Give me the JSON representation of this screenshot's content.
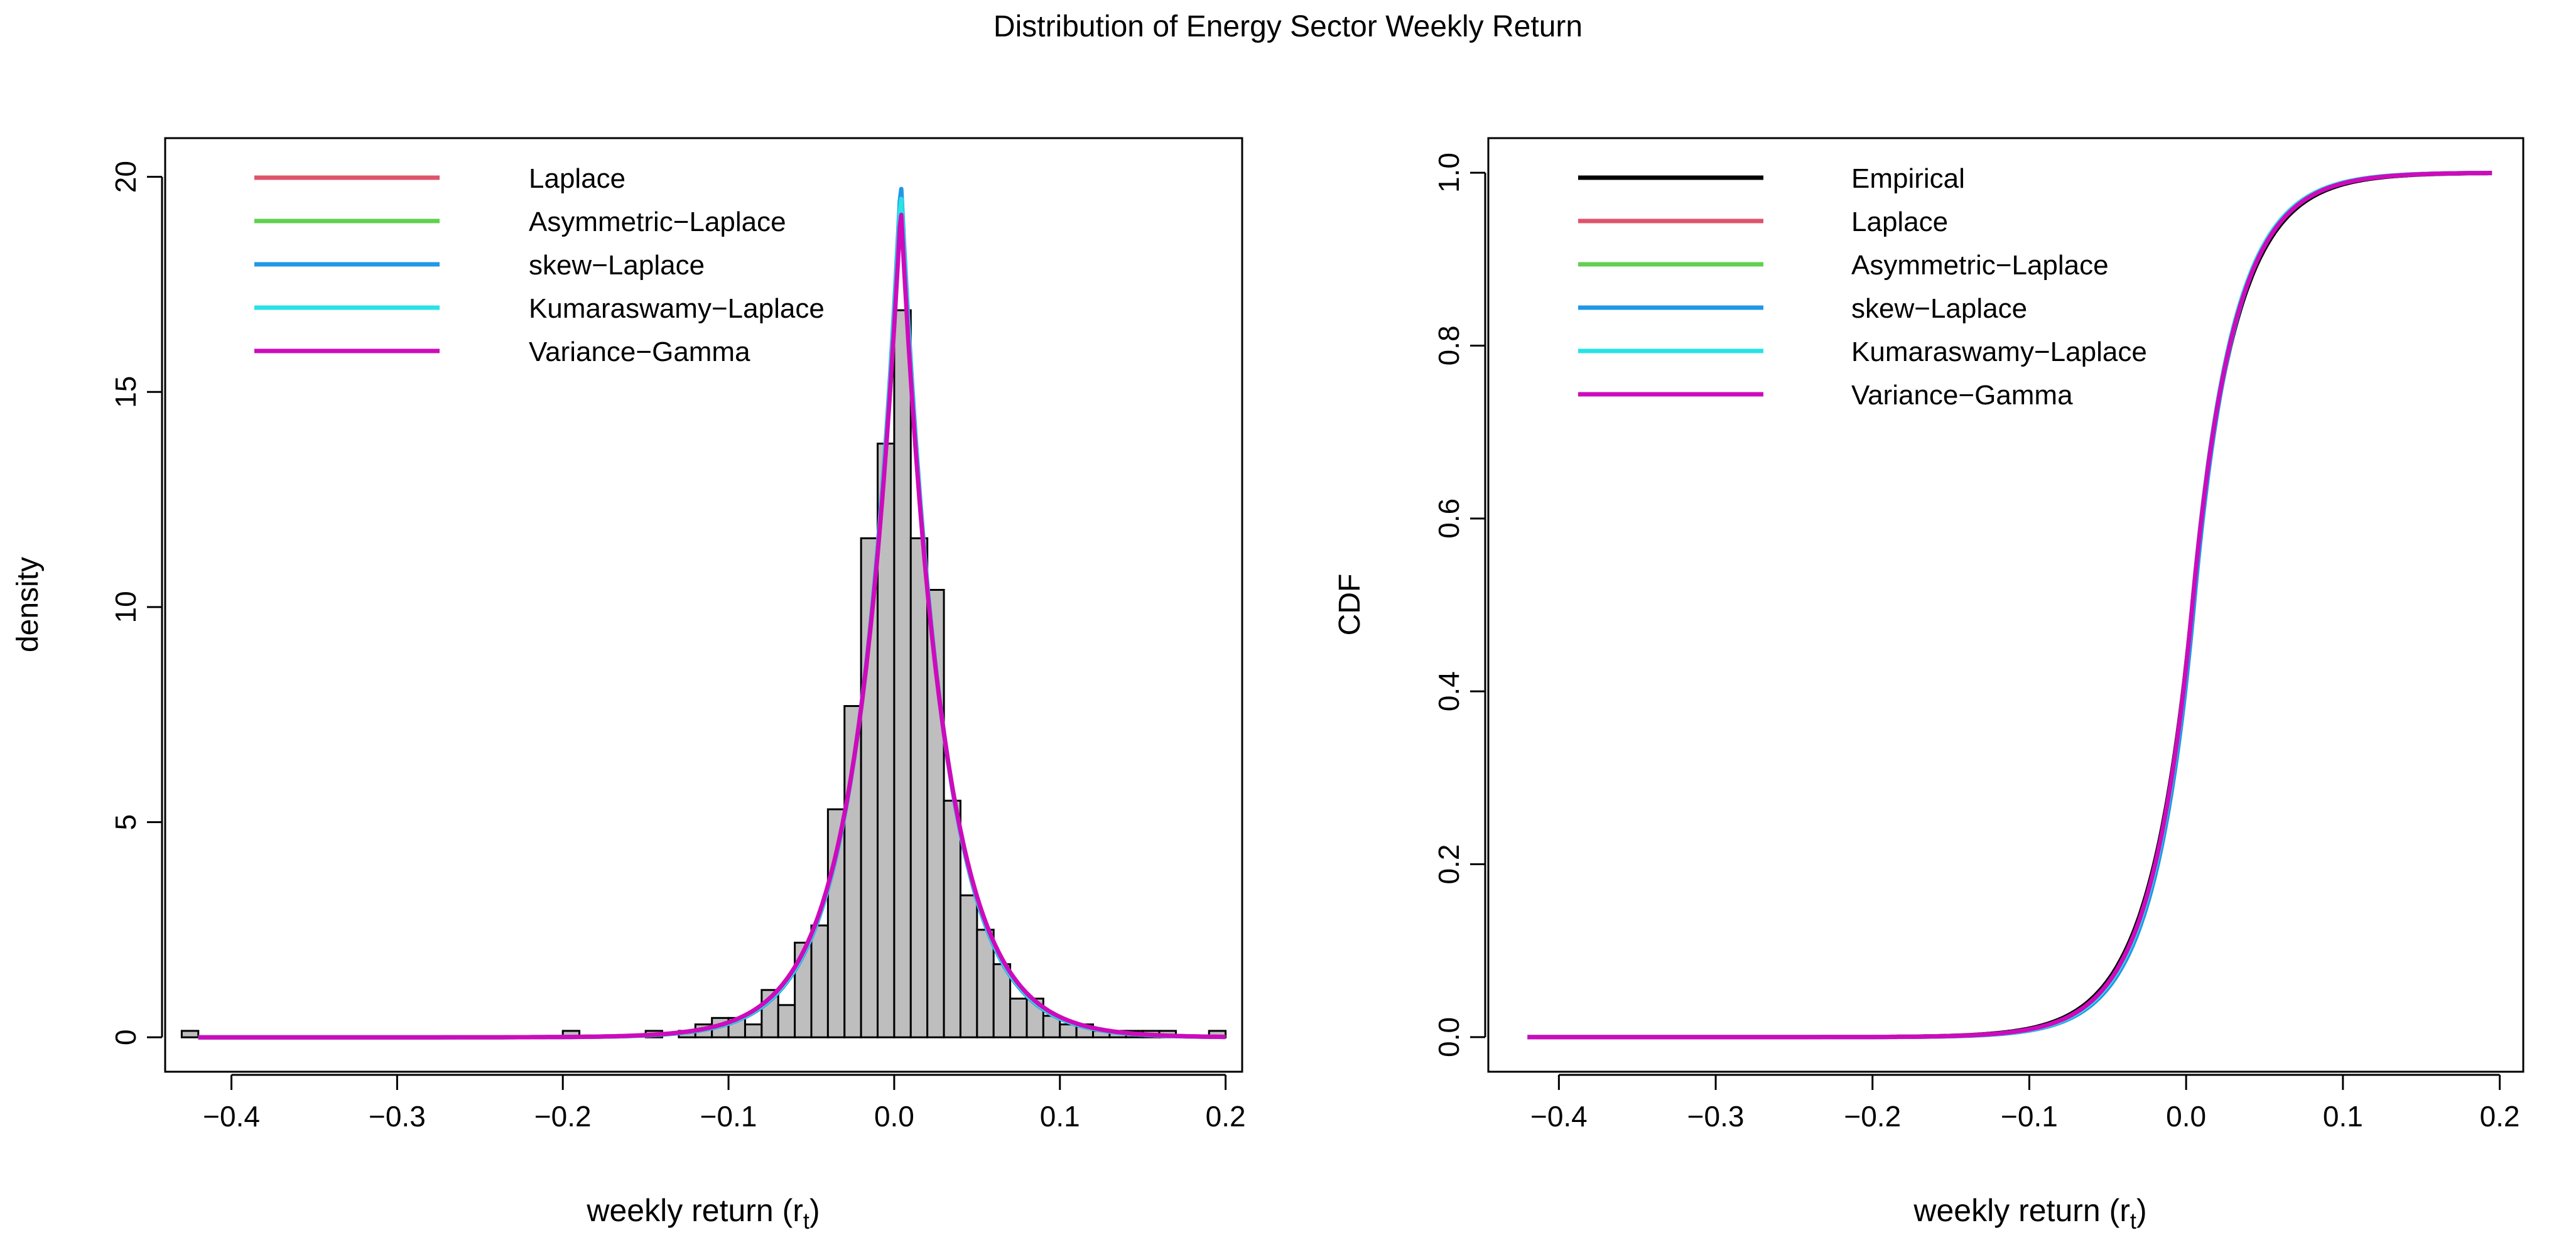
{
  "figure": {
    "title": "Distribution of Energy Sector Weekly Return"
  },
  "chart_data": [
    {
      "type": "histogram",
      "xlabel": "weekly return (r",
      "xlabel_sub": "t",
      "xlabel_end": ")",
      "ylabel": "density",
      "xlim": [
        -0.44,
        0.21
      ],
      "ylim": [
        -0.8,
        20.9
      ],
      "xticks": [
        -0.4,
        -0.3,
        -0.2,
        -0.1,
        0.0,
        0.1,
        0.2
      ],
      "xtick_labels": [
        "−0.4",
        "−0.3",
        "−0.2",
        "−0.1",
        "0.0",
        "0.1",
        "0.2"
      ],
      "yticks": [
        0,
        5,
        10,
        15,
        20
      ],
      "ytick_labels": [
        "0",
        "5",
        "10",
        "15",
        "20"
      ],
      "grid": false,
      "legend_position": "top-left",
      "bin_width": 0.01,
      "bins": [
        {
          "x0": -0.43,
          "density": 0.15
        },
        {
          "x0": -0.2,
          "density": 0.15
        },
        {
          "x0": -0.15,
          "density": 0.15
        },
        {
          "x0": -0.13,
          "density": 0.15
        },
        {
          "x0": -0.12,
          "density": 0.3
        },
        {
          "x0": -0.11,
          "density": 0.45
        },
        {
          "x0": -0.1,
          "density": 0.45
        },
        {
          "x0": -0.09,
          "density": 0.3
        },
        {
          "x0": -0.08,
          "density": 1.1
        },
        {
          "x0": -0.07,
          "density": 0.75
        },
        {
          "x0": -0.06,
          "density": 2.2
        },
        {
          "x0": -0.05,
          "density": 2.6
        },
        {
          "x0": -0.04,
          "density": 5.3
        },
        {
          "x0": -0.03,
          "density": 7.7
        },
        {
          "x0": -0.02,
          "density": 11.6
        },
        {
          "x0": -0.01,
          "density": 13.8
        },
        {
          "x0": 0.0,
          "density": 16.9
        },
        {
          "x0": 0.01,
          "density": 11.6
        },
        {
          "x0": 0.02,
          "density": 10.4
        },
        {
          "x0": 0.03,
          "density": 5.5
        },
        {
          "x0": 0.04,
          "density": 3.3
        },
        {
          "x0": 0.05,
          "density": 2.5
        },
        {
          "x0": 0.06,
          "density": 1.7
        },
        {
          "x0": 0.07,
          "density": 0.9
        },
        {
          "x0": 0.08,
          "density": 0.9
        },
        {
          "x0": 0.09,
          "density": 0.5
        },
        {
          "x0": 0.1,
          "density": 0.3
        },
        {
          "x0": 0.11,
          "density": 0.3
        },
        {
          "x0": 0.12,
          "density": 0.15
        },
        {
          "x0": 0.13,
          "density": 0.15
        },
        {
          "x0": 0.14,
          "density": 0.15
        },
        {
          "x0": 0.15,
          "density": 0.15
        },
        {
          "x0": 0.16,
          "density": 0.15
        },
        {
          "x0": 0.19,
          "density": 0.15
        }
      ],
      "bar_fill": "#bebebe",
      "density_range": [
        -0.42,
        0.2
      ],
      "series": [
        {
          "name": "Laplace",
          "color": "#df536b",
          "mu": 0.004,
          "b": 0.0258
        },
        {
          "name": "Asymmetric−Laplace",
          "color": "#61d04f",
          "mu": 0.004,
          "b": 0.0256
        },
        {
          "name": "skew−Laplace",
          "color": "#2297e6",
          "mu": 0.004,
          "b": 0.0251
        },
        {
          "name": "Kumaraswamy−Laplace",
          "color": "#28e2e5",
          "mu": 0.004,
          "b": 0.0254
        },
        {
          "name": "Variance−Gamma",
          "color": "#cd0bbc",
          "mu": 0.004,
          "b": 0.0259
        }
      ]
    },
    {
      "type": "line",
      "xlabel": "weekly return (r",
      "xlabel_sub": "t",
      "xlabel_end": ")",
      "ylabel": "CDF",
      "xlim": [
        -0.445,
        0.215
      ],
      "ylim": [
        -0.04,
        1.04
      ],
      "xticks": [
        -0.4,
        -0.3,
        -0.2,
        -0.1,
        0.0,
        0.1,
        0.2
      ],
      "xtick_labels": [
        "−0.4",
        "−0.3",
        "−0.2",
        "−0.1",
        "0.0",
        "0.1",
        "0.2"
      ],
      "yticks": [
        0.0,
        0.2,
        0.4,
        0.6,
        0.8,
        1.0
      ],
      "ytick_labels": [
        "0.0",
        "0.2",
        "0.4",
        "0.6",
        "0.8",
        "1.0"
      ],
      "grid": false,
      "legend_position": "top-left",
      "x_range": [
        -0.42,
        0.195
      ],
      "series": [
        {
          "name": "Empirical",
          "color": "#000000",
          "mu": 0.004,
          "b": 0.0265
        },
        {
          "name": "Laplace",
          "color": "#df536b",
          "mu": 0.004,
          "b": 0.0258
        },
        {
          "name": "Asymmetric−Laplace",
          "color": "#61d04f",
          "mu": 0.004,
          "b": 0.0256
        },
        {
          "name": "skew−Laplace",
          "color": "#2297e6",
          "mu": 0.005,
          "b": 0.0252
        },
        {
          "name": "Kumaraswamy−Laplace",
          "color": "#28e2e5",
          "mu": 0.004,
          "b": 0.0254
        },
        {
          "name": "Variance−Gamma",
          "color": "#cd0bbc",
          "mu": 0.004,
          "b": 0.0259
        }
      ]
    }
  ]
}
